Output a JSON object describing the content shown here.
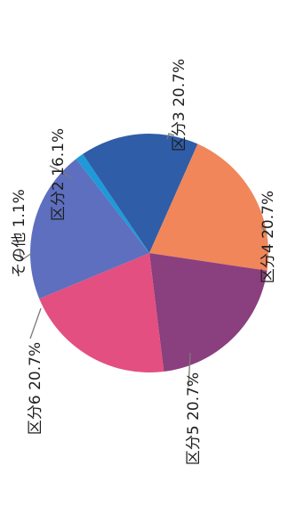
{
  "chart_data": {
    "type": "pie",
    "title": "",
    "slices": [
      {
        "label": "区分2",
        "value": 16.1,
        "value_label": "16.1%",
        "color": "#2f5da8"
      },
      {
        "label": "区分3",
        "value": 20.7,
        "value_label": "20.7%",
        "color": "#f0865a"
      },
      {
        "label": "区分4",
        "value": 20.7,
        "value_label": "20.7%",
        "color": "#8a3f7e"
      },
      {
        "label": "区分5",
        "value": 20.7,
        "value_label": "20.7%",
        "color": "#e34f80"
      },
      {
        "label": "区分6",
        "value": 20.7,
        "value_label": "20.7%",
        "color": "#5d6fbe"
      },
      {
        "label": "その他",
        "value": 1.1,
        "value_label": "1.1%",
        "color": "#1e9ad8"
      }
    ],
    "legend": "none",
    "orientation": "rotated-90-clockwise"
  }
}
